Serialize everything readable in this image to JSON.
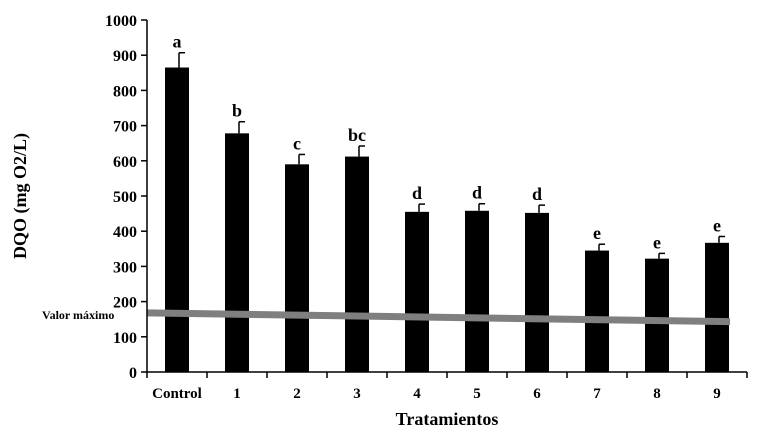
{
  "chart_data": {
    "type": "bar",
    "categories": [
      "Control",
      "1",
      "2",
      "3",
      "4",
      "5",
      "6",
      "7",
      "8",
      "9"
    ],
    "values": [
      865,
      678,
      590,
      612,
      455,
      458,
      452,
      345,
      322,
      367
    ],
    "errors": [
      42,
      33,
      28,
      30,
      22,
      20,
      22,
      18,
      15,
      18
    ],
    "significance_letters": [
      "a",
      "b",
      "c",
      "bc",
      "d",
      "d",
      "d",
      "e",
      "e",
      "e"
    ],
    "xlabel": "Tratamientos",
    "ylabel": "DQO (mg O2/L)",
    "ylim": [
      0,
      1000
    ],
    "yticks": [
      "0",
      "100",
      "200",
      "300",
      "400",
      "500",
      "600",
      "700",
      "800",
      "900",
      "1000"
    ],
    "grid": false,
    "colors": {
      "bars": "#000000",
      "reference_line": "#7f7f7f"
    },
    "reference_line": {
      "label": "Valor máximo",
      "start_value": 168,
      "end_value": 143
    }
  }
}
